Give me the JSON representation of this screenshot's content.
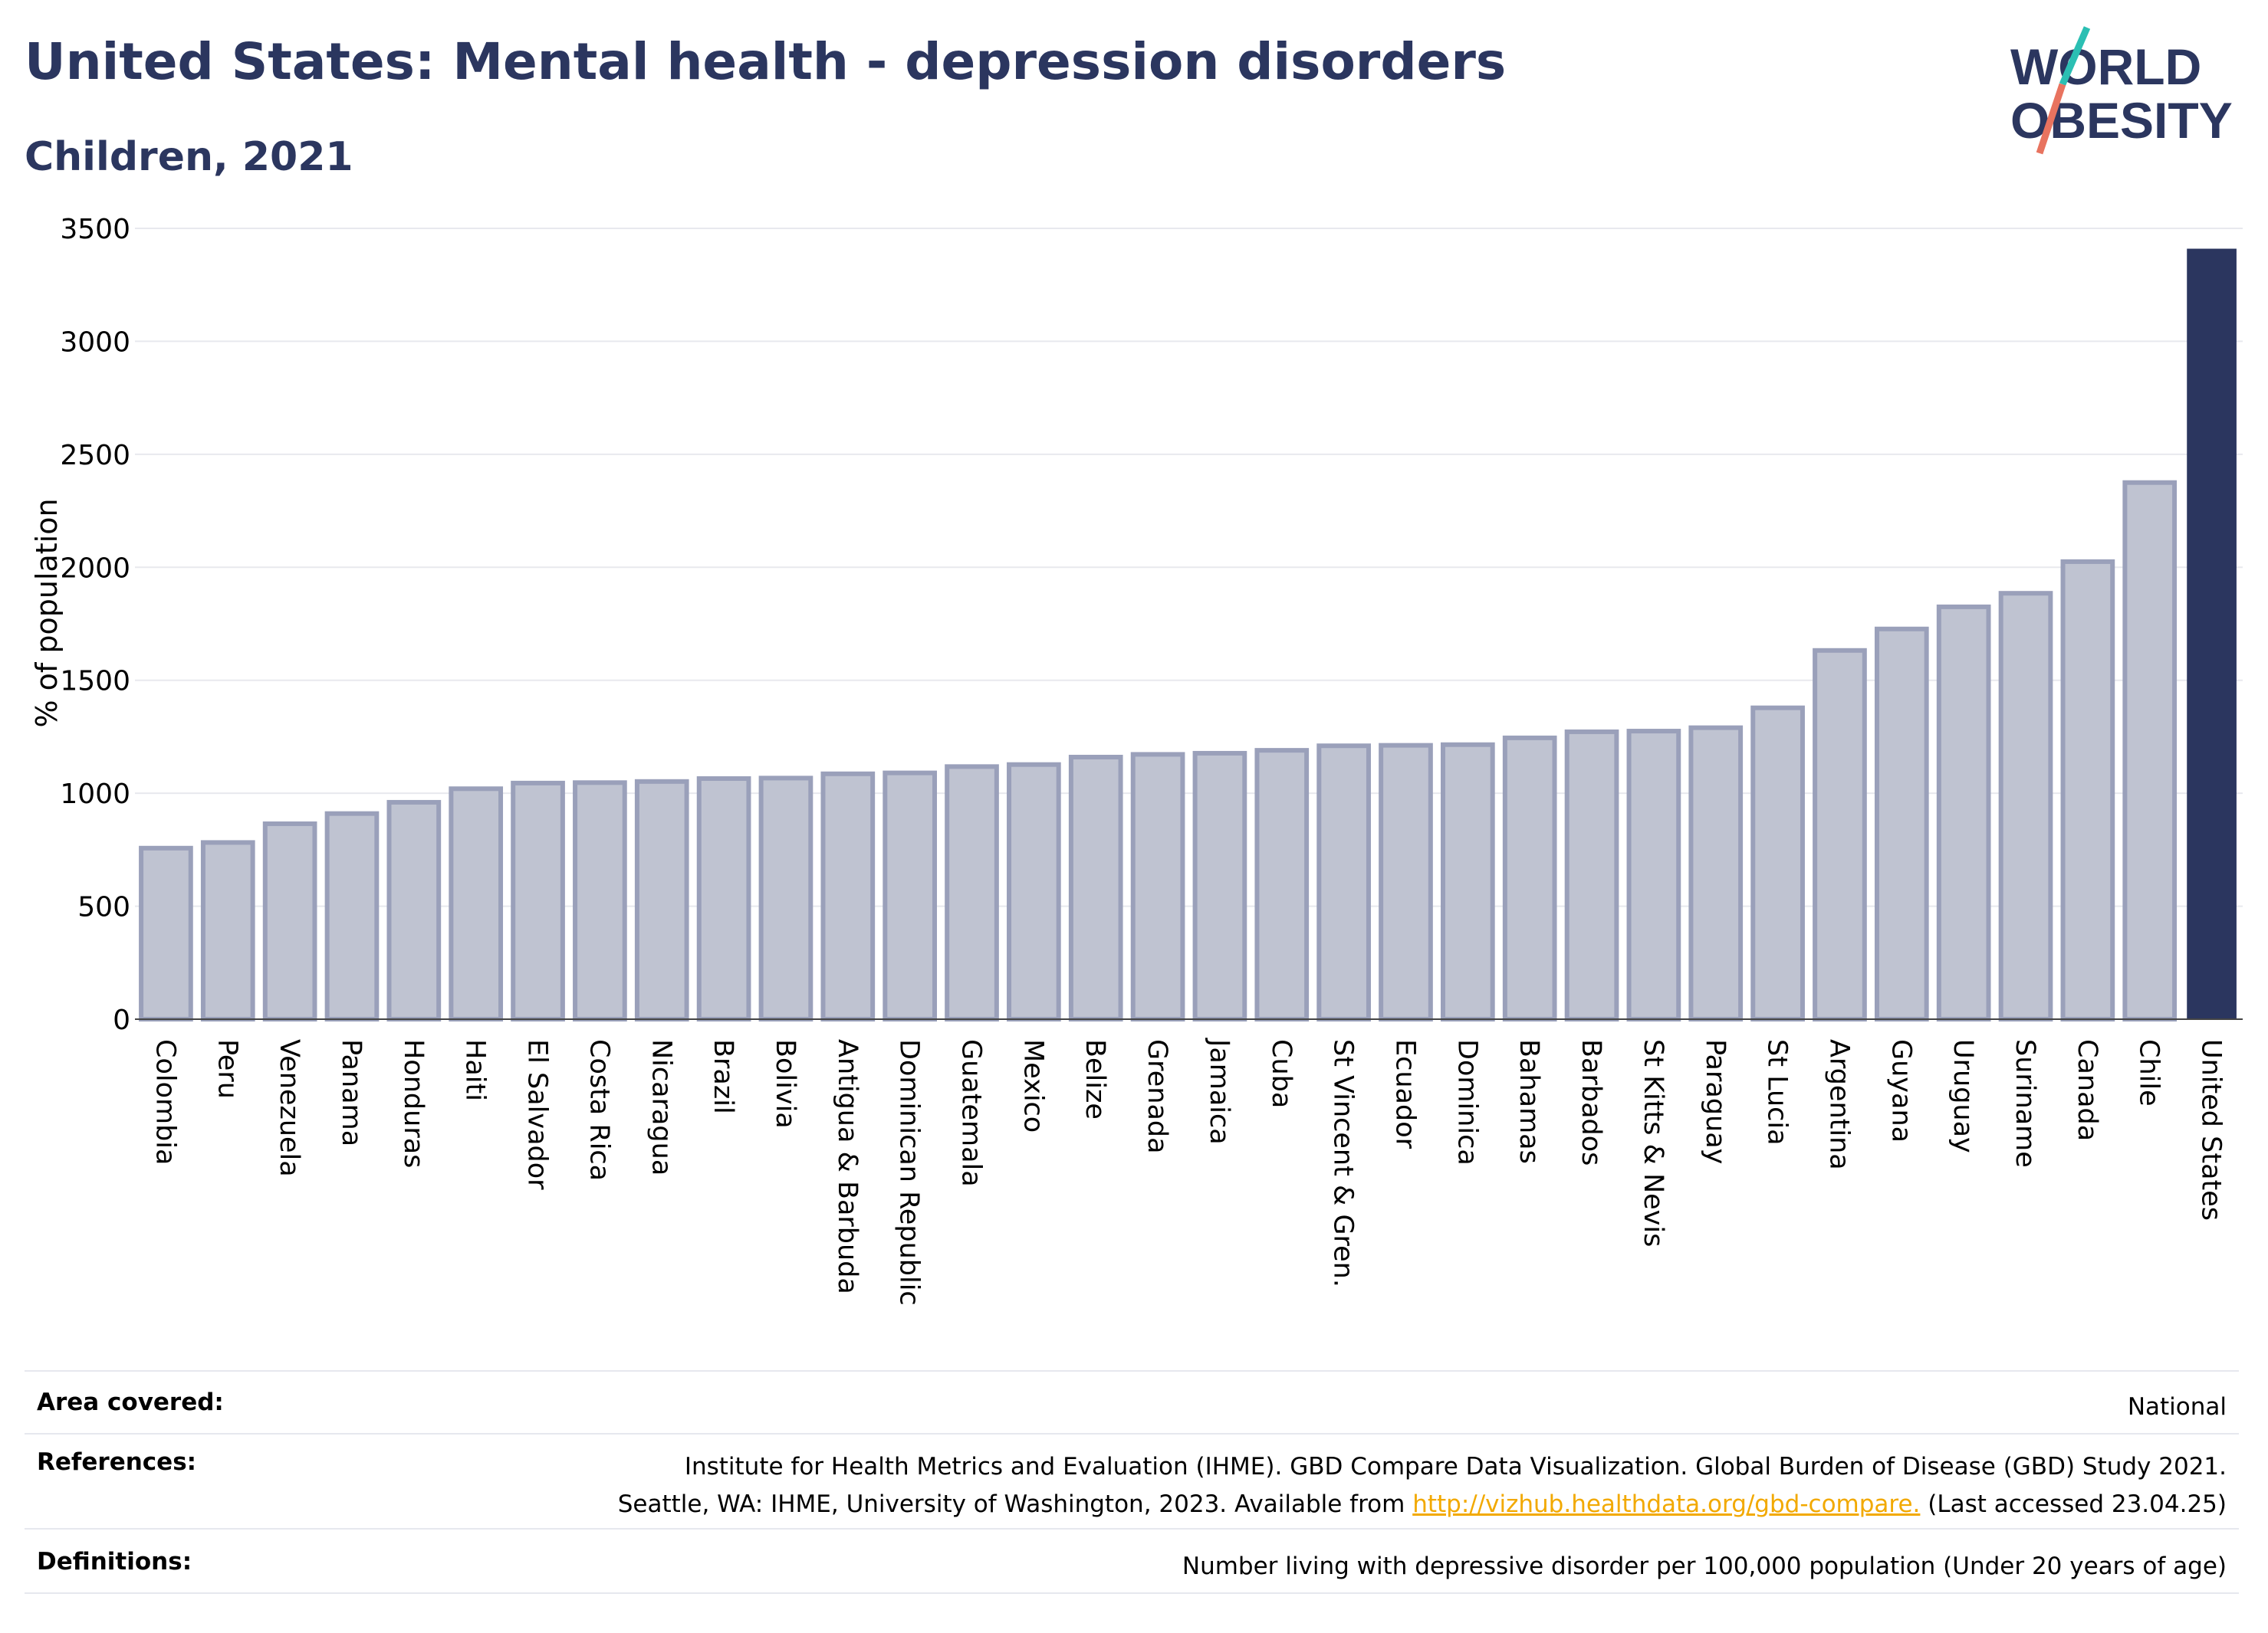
{
  "title": "United States: Mental health - depression disorders",
  "subtitle": "Children, 2021",
  "logo": {
    "line1": "WORLD",
    "line2": "OBESITY"
  },
  "colors": {
    "bar": "#bfc3d1",
    "bar_edge": "#9aa0ba",
    "highlight": "#2b365f",
    "title": "#2b365f",
    "link": "#f2a900"
  },
  "chart_data": {
    "type": "bar",
    "ylabel": "% of population",
    "ylim": [
      0,
      3500
    ],
    "yticks": [
      0,
      500,
      1000,
      1500,
      2000,
      2500,
      3000,
      3500
    ],
    "grid": true,
    "categories": [
      "Colombia",
      "Peru",
      "Venezuela",
      "Panama",
      "Honduras",
      "Haiti",
      "El Salvador",
      "Costa Rica",
      "Nicaragua",
      "Brazil",
      "Bolivia",
      "Antigua & Barbuda",
      "Dominican Republic",
      "Guatemala",
      "Mexico",
      "Belize",
      "Grenada",
      "Jamaica",
      "Cuba",
      "St Vincent & Gren.",
      "Ecuador",
      "Dominica",
      "Bahamas",
      "Barbados",
      "St Kitts & Nevis",
      "Paraguay",
      "St Lucia",
      "Argentina",
      "Guyana",
      "Uruguay",
      "Suriname",
      "Canada",
      "Chile",
      "United States"
    ],
    "values": [
      757,
      782,
      865,
      910,
      960,
      1020,
      1045,
      1047,
      1052,
      1065,
      1067,
      1086,
      1090,
      1118,
      1127,
      1160,
      1172,
      1177,
      1190,
      1210,
      1212,
      1215,
      1245,
      1272,
      1275,
      1290,
      1378,
      1632,
      1727,
      1825,
      1885,
      2025,
      2375,
      3410
    ],
    "highlight": "United States"
  },
  "footer": {
    "area_label": "Area covered:",
    "area_value": "National",
    "references_label": "References:",
    "references_line1": "Institute for Health Metrics and Evaluation (IHME). GBD Compare Data Visualization. Global Burden of Disease (GBD) Study 2021.",
    "references_line2_pre": "Seattle, WA: IHME, University of Washington, 2023. Available from ",
    "references_link": "http://vizhub.healthdata.org/gbd-compare.",
    "references_line2_post": " (Last accessed 23.04.25)",
    "definitions_label": "Definitions:",
    "definitions_value": "Number living with depressive disorder per 100,000 population (Under 20 years of age)"
  }
}
